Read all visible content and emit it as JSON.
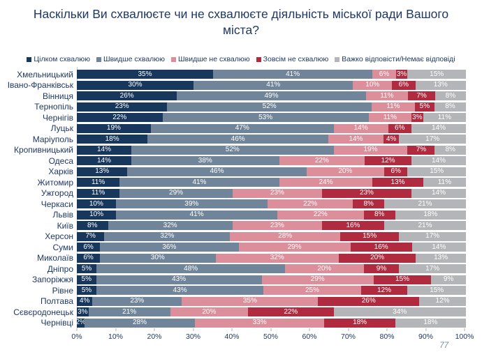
{
  "title": "Наскільки Ви схвалюєте чи не схвалюєте діяльність міської ради Вашого міста?",
  "page_number": "77",
  "colors": {
    "title_text": "#1F3864",
    "axis_text": "#1F3864",
    "series_1": "#17375D",
    "series_2": "#70859A",
    "series_3": "#DC8E9B",
    "series_4": "#B02B3F",
    "series_5": "#B3B5B8"
  },
  "chart_data": {
    "type": "bar",
    "stacked": true,
    "normalized_100": true,
    "orientation": "horizontal",
    "title": "Наскільки Ви схвалюєте чи не схвалюєте діяльність міської ради Вашого міста?",
    "legend_position": "top",
    "grid": false,
    "xlim": [
      0,
      100
    ],
    "x_tick_labels": [
      "0%",
      "10%",
      "20%",
      "30%",
      "40%",
      "50%",
      "60%",
      "70%",
      "80%",
      "90%",
      "100%"
    ],
    "categories": [
      "Хмельницький",
      "Івано-Франківськ",
      "Вінниця",
      "Тернопіль",
      "Чернігів",
      "Луцьк",
      "Маріуполь",
      "Кропивницький",
      "Одеса",
      "Харків",
      "Житомир",
      "Ужгород",
      "Черкаси",
      "Львів",
      "Київ",
      "Херсон",
      "Суми",
      "Миколаїв",
      "Дніпро",
      "Запоріжжя",
      "Рівне",
      "Полтава",
      "Сєвєродонецьк",
      "Чернівці"
    ],
    "series": [
      {
        "name": "Цілком схвалюю",
        "color": "#17375D",
        "values": [
          35,
          30,
          26,
          23,
          22,
          19,
          18,
          14,
          14,
          13,
          11,
          11,
          10,
          10,
          8,
          7,
          6,
          6,
          5,
          5,
          5,
          4,
          3,
          2
        ]
      },
      {
        "name": "Швидше схвалюю",
        "color": "#70859A",
        "values": [
          41,
          41,
          49,
          52,
          53,
          47,
          46,
          52,
          38,
          46,
          41,
          29,
          39,
          41,
          32,
          32,
          36,
          30,
          48,
          43,
          43,
          23,
          21,
          28
        ]
      },
      {
        "name": "Швидше не схвалюю",
        "color": "#DC8E9B",
        "values": [
          6,
          10,
          11,
          11,
          11,
          14,
          14,
          19,
          22,
          20,
          24,
          23,
          22,
          22,
          23,
          28,
          29,
          32,
          20,
          29,
          25,
          35,
          20,
          33
        ]
      },
      {
        "name": "Зовсім не схвалюю",
        "color": "#B02B3F",
        "values": [
          3,
          6,
          7,
          5,
          3,
          6,
          4,
          7,
          12,
          6,
          13,
          23,
          8,
          8,
          16,
          15,
          16,
          20,
          9,
          15,
          12,
          26,
          22,
          18
        ]
      },
      {
        "name": "Важко відповісти/Немає відповіді",
        "color": "#B3B5B8",
        "values": [
          15,
          13,
          8,
          8,
          11,
          14,
          17,
          8,
          14,
          15,
          11,
          14,
          21,
          18,
          21,
          17,
          14,
          13,
          17,
          9,
          15,
          12,
          34,
          18
        ]
      }
    ]
  }
}
